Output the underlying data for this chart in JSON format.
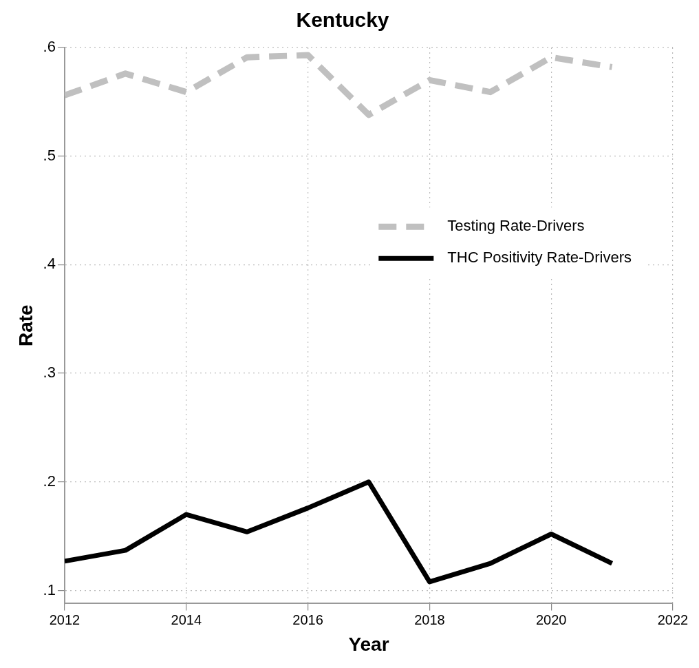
{
  "chart_data": {
    "type": "line",
    "title": "Kentucky",
    "xlabel": "Year",
    "ylabel": "Rate",
    "x": [
      2012,
      2013,
      2014,
      2015,
      2016,
      2017,
      2018,
      2019,
      2020,
      2021
    ],
    "series": [
      {
        "name": "Testing Rate-Drivers",
        "color": "#c0c0c0",
        "line_style": "dashed",
        "values": [
          0.556,
          0.576,
          0.559,
          0.591,
          0.593,
          0.538,
          0.57,
          0.559,
          0.591,
          0.582
        ]
      },
      {
        "name": "THC Positivity Rate-Drivers",
        "color": "#000000",
        "line_style": "solid",
        "values": [
          0.127,
          0.137,
          0.17,
          0.154,
          0.176,
          0.2,
          0.108,
          0.125,
          0.152,
          0.125
        ]
      }
    ],
    "xlim": [
      2012,
      2022
    ],
    "xticks": [
      2012,
      2014,
      2016,
      2018,
      2020,
      2022
    ],
    "ylim": [
      0.088,
      0.6
    ],
    "yticks": [
      {
        "value": 0.1,
        "label": ".1"
      },
      {
        "value": 0.2,
        "label": ".2"
      },
      {
        "value": 0.3,
        "label": ".3"
      },
      {
        "value": 0.4,
        "label": ".4"
      },
      {
        "value": 0.5,
        "label": ".5"
      },
      {
        "value": 0.6,
        "label": ".6"
      }
    ],
    "grid": true,
    "legend": "top right",
    "marker": "none"
  }
}
